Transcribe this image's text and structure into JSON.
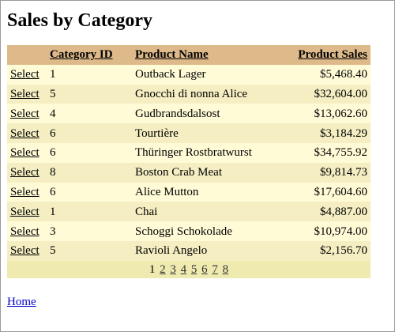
{
  "page": {
    "title": "Sales by Category",
    "home_link": "Home"
  },
  "grid": {
    "columns": [
      "",
      "Category ID",
      "Product Name",
      "Product Sales"
    ],
    "select_label": "Select",
    "rows": [
      {
        "category_id": "1",
        "product_name": "Outback Lager",
        "product_sales": "$5,468.40"
      },
      {
        "category_id": "5",
        "product_name": "Gnocchi di nonna Alice",
        "product_sales": "$32,604.00"
      },
      {
        "category_id": "4",
        "product_name": "Gudbrandsdalsost",
        "product_sales": "$13,062.60"
      },
      {
        "category_id": "6",
        "product_name": "Tourtière",
        "product_sales": "$3,184.29"
      },
      {
        "category_id": "6",
        "product_name": "Thüringer Rostbratwurst",
        "product_sales": "$34,755.92"
      },
      {
        "category_id": "8",
        "product_name": "Boston Crab Meat",
        "product_sales": "$9,814.73"
      },
      {
        "category_id": "6",
        "product_name": "Alice Mutton",
        "product_sales": "$17,604.60"
      },
      {
        "category_id": "1",
        "product_name": "Chai",
        "product_sales": "$4,887.00"
      },
      {
        "category_id": "3",
        "product_name": "Schoggi Schokolade",
        "product_sales": "$10,974.00"
      },
      {
        "category_id": "5",
        "product_name": "Ravioli Angelo",
        "product_sales": "$2,156.70"
      }
    ],
    "pager": {
      "current": "1",
      "pages": [
        "2",
        "3",
        "4",
        "5",
        "6",
        "7",
        "8"
      ]
    }
  },
  "colors": {
    "header_bg": "#deba8b",
    "row_light": "#fffbd6",
    "row_dark": "#f4eec2",
    "pager_bg": "#eeeab0",
    "link": "#0000cc"
  }
}
